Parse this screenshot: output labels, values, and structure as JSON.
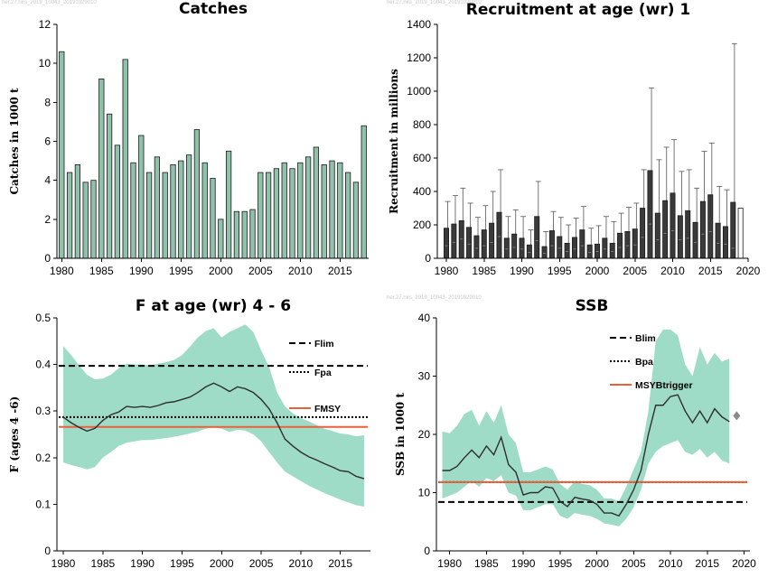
{
  "watermarks": {
    "catches": "her.27.nirs_2019_10043_20191029010",
    "recruitment": "her.27.nirs_2019_10043_20191029010",
    "f": "her.27.nirs_2019_10043_20191029010",
    "ssb": "her.27.nirs_2019_10043_20191029010"
  },
  "colors": {
    "catch_bar": "#8fc1ab",
    "rec_bar": "#3a3a3a",
    "band": "#9fdcc8",
    "ref_red": "#e8613a"
  },
  "chart_data": [
    {
      "id": "catches",
      "type": "bar",
      "title": "Catches",
      "xlabel": "",
      "ylabel": "Catches in 1000 t",
      "xlim": [
        1979.4,
        2018.6
      ],
      "ylim": [
        0,
        12
      ],
      "yticks": [
        0,
        2,
        4,
        6,
        8,
        10,
        12
      ],
      "xticks": [
        1980,
        1985,
        1990,
        1995,
        2000,
        2005,
        2010,
        2015
      ],
      "years": [
        1980,
        1981,
        1982,
        1983,
        1984,
        1985,
        1986,
        1987,
        1988,
        1989,
        1990,
        1991,
        1992,
        1993,
        1994,
        1995,
        1996,
        1997,
        1998,
        1999,
        2000,
        2001,
        2002,
        2003,
        2004,
        2005,
        2006,
        2007,
        2008,
        2009,
        2010,
        2011,
        2012,
        2013,
        2014,
        2015,
        2016,
        2017,
        2018
      ],
      "values": [
        10.6,
        4.4,
        4.8,
        3.9,
        4.0,
        9.2,
        7.4,
        5.8,
        10.2,
        4.9,
        6.3,
        4.4,
        5.2,
        4.4,
        4.8,
        5.0,
        5.3,
        6.6,
        4.9,
        4.1,
        2.0,
        5.5,
        2.4,
        2.4,
        2.5,
        4.4,
        4.4,
        4.6,
        4.9,
        4.6,
        4.9,
        5.2,
        5.7,
        4.8,
        5.0,
        4.9,
        4.4,
        3.9,
        6.8
      ]
    },
    {
      "id": "recruitment",
      "type": "bar",
      "title": "Recruitment at age (wr) 1",
      "xlabel": "",
      "ylabel": "Recruitment in millions",
      "xlim": [
        1978.8,
        2020
      ],
      "ylim": [
        0,
        1400
      ],
      "yticks": [
        0,
        200,
        400,
        600,
        800,
        1000,
        1200,
        1400
      ],
      "xticks": [
        1980,
        1985,
        1990,
        1995,
        2000,
        2005,
        2010,
        2015,
        2020
      ],
      "years": [
        1980,
        1981,
        1982,
        1983,
        1984,
        1985,
        1986,
        1987,
        1988,
        1989,
        1990,
        1991,
        1992,
        1993,
        1994,
        1995,
        1996,
        1997,
        1998,
        1999,
        2000,
        2001,
        2002,
        2003,
        2004,
        2005,
        2006,
        2007,
        2008,
        2009,
        2010,
        2011,
        2012,
        2013,
        2014,
        2015,
        2016,
        2017,
        2018,
        2019
      ],
      "values": [
        180,
        205,
        225,
        185,
        135,
        170,
        210,
        275,
        120,
        145,
        120,
        80,
        250,
        70,
        165,
        130,
        90,
        125,
        170,
        80,
        85,
        120,
        90,
        150,
        160,
        175,
        300,
        525,
        270,
        345,
        390,
        255,
        285,
        215,
        340,
        380,
        210,
        190,
        335,
        300
      ],
      "upper": [
        340,
        375,
        420,
        330,
        245,
        315,
        400,
        530,
        250,
        290,
        250,
        170,
        460,
        160,
        280,
        245,
        200,
        240,
        310,
        180,
        195,
        250,
        220,
        270,
        305,
        330,
        530,
        1020,
        590,
        665,
        710,
        520,
        530,
        420,
        640,
        690,
        430,
        410,
        1285,
        300
      ],
      "lower": [
        75,
        95,
        115,
        85,
        60,
        75,
        95,
        130,
        55,
        65,
        55,
        35,
        105,
        30,
        75,
        60,
        40,
        55,
        75,
        35,
        40,
        55,
        40,
        65,
        75,
        80,
        125,
        205,
        110,
        150,
        165,
        110,
        120,
        95,
        145,
        160,
        90,
        85,
        60,
        300
      ],
      "last_year_open_bar": 2019
    },
    {
      "id": "fishing_mortality",
      "type": "line",
      "title": "F at age (wr) 4 - 6",
      "xlabel": "",
      "ylabel": "F (ages 4 -6)",
      "xlim": [
        1979.2,
        2018.8
      ],
      "ylim": [
        0,
        0.5
      ],
      "yticks": [
        0,
        0.1,
        0.2,
        0.3,
        0.4,
        0.5
      ],
      "xticks": [
        1980,
        1985,
        1990,
        1995,
        2000,
        2005,
        2010,
        2015
      ],
      "x": [
        1980,
        1981,
        1982,
        1983,
        1984,
        1985,
        1986,
        1987,
        1988,
        1989,
        1990,
        1991,
        1992,
        1993,
        1994,
        1995,
        1996,
        1997,
        1998,
        1999,
        2000,
        2001,
        2002,
        2003,
        2004,
        2005,
        2006,
        2007,
        2008,
        2009,
        2010,
        2011,
        2012,
        2013,
        2014,
        2015,
        2016,
        2017,
        2018
      ],
      "y": [
        0.287,
        0.275,
        0.265,
        0.257,
        0.263,
        0.28,
        0.292,
        0.298,
        0.31,
        0.308,
        0.31,
        0.308,
        0.312,
        0.318,
        0.32,
        0.325,
        0.33,
        0.34,
        0.352,
        0.36,
        0.352,
        0.342,
        0.352,
        0.348,
        0.34,
        0.325,
        0.305,
        0.275,
        0.24,
        0.225,
        0.212,
        0.202,
        0.195,
        0.187,
        0.18,
        0.172,
        0.17,
        0.16,
        0.155
      ],
      "upper": [
        0.44,
        0.42,
        0.398,
        0.378,
        0.368,
        0.37,
        0.378,
        0.392,
        0.402,
        0.4,
        0.4,
        0.398,
        0.402,
        0.405,
        0.41,
        0.42,
        0.438,
        0.458,
        0.472,
        0.478,
        0.458,
        0.47,
        0.478,
        0.486,
        0.47,
        0.43,
        0.395,
        0.34,
        0.31,
        0.295,
        0.285,
        0.278,
        0.27,
        0.262,
        0.257,
        0.252,
        0.25,
        0.246,
        0.248
      ],
      "lower": [
        0.19,
        0.184,
        0.18,
        0.175,
        0.18,
        0.2,
        0.212,
        0.225,
        0.232,
        0.235,
        0.238,
        0.238,
        0.24,
        0.242,
        0.245,
        0.248,
        0.252,
        0.256,
        0.262,
        0.265,
        0.262,
        0.255,
        0.26,
        0.258,
        0.25,
        0.235,
        0.212,
        0.19,
        0.17,
        0.16,
        0.15,
        0.14,
        0.132,
        0.124,
        0.117,
        0.11,
        0.104,
        0.098,
        0.095
      ],
      "refs": [
        {
          "name": "Flim",
          "value": 0.397,
          "style": "dashed",
          "color": "#000000"
        },
        {
          "name": "Fpa",
          "value": 0.287,
          "style": "dotted",
          "color": "#000000"
        },
        {
          "name": "FMSY",
          "value": 0.266,
          "style": "solid",
          "color": "#e8613a"
        }
      ],
      "legend": "top-right"
    },
    {
      "id": "ssb",
      "type": "line",
      "title": "SSB",
      "xlabel": "",
      "ylabel": "SSB in 1000 t",
      "xlim": [
        1978.2,
        2020.8
      ],
      "ylim": [
        0,
        40
      ],
      "yticks": [
        0,
        10,
        20,
        30,
        40
      ],
      "xticks": [
        1980,
        1985,
        1990,
        1995,
        2000,
        2005,
        2010,
        2015,
        2020
      ],
      "x": [
        1979,
        1980,
        1981,
        1982,
        1983,
        1984,
        1985,
        1986,
        1987,
        1988,
        1989,
        1990,
        1991,
        1992,
        1993,
        1994,
        1995,
        1996,
        1997,
        1998,
        1999,
        2000,
        2001,
        2002,
        2003,
        2004,
        2005,
        2006,
        2007,
        2008,
        2009,
        2010,
        2011,
        2012,
        2013,
        2014,
        2015,
        2016,
        2017,
        2018
      ],
      "y": [
        13.8,
        13.8,
        14.5,
        16.0,
        17.3,
        16.0,
        18.0,
        16.5,
        19.5,
        14.8,
        13.5,
        9.6,
        10.0,
        10.0,
        11.0,
        10.8,
        8.5,
        7.6,
        9.2,
        8.9,
        8.7,
        8.0,
        6.5,
        6.5,
        6.0,
        8.0,
        10.5,
        13.8,
        20.0,
        25.0,
        25.0,
        26.5,
        26.8,
        24.0,
        22.0,
        24.0,
        22.0,
        24.4,
        23.0,
        22.2
      ],
      "upper": [
        20.5,
        20.2,
        21.5,
        23.5,
        24.2,
        21.5,
        24.0,
        22.0,
        25.0,
        20.0,
        18.5,
        13.5,
        13.5,
        14.0,
        14.5,
        14.0,
        11.5,
        10.5,
        12.0,
        11.5,
        11.3,
        10.5,
        9.0,
        9.0,
        8.5,
        11.0,
        14.0,
        17.0,
        24.0,
        36.0,
        38.0,
        38.0,
        37.0,
        32.0,
        30.0,
        35.0,
        32.0,
        34.0,
        32.5,
        33.0
      ],
      "lower": [
        9.0,
        9.5,
        10.0,
        11.0,
        12.0,
        11.0,
        12.5,
        12.0,
        13.0,
        10.0,
        9.5,
        7.0,
        7.0,
        7.5,
        8.0,
        8.0,
        6.0,
        5.5,
        6.5,
        6.2,
        6.0,
        5.5,
        4.7,
        4.5,
        4.2,
        5.5,
        7.5,
        10.5,
        15.0,
        17.0,
        18.0,
        18.5,
        19.0,
        17.0,
        16.5,
        17.5,
        16.0,
        17.0,
        15.5,
        15.0
      ],
      "marker": {
        "x": 2019,
        "y": 23.2
      },
      "refs": [
        {
          "name": "Blim",
          "value": 8.4,
          "style": "dashed",
          "color": "#000000"
        },
        {
          "name": "Bpa",
          "value": 11.8,
          "style": "dotted",
          "color": "#000000"
        },
        {
          "name": "MSYBtrigger",
          "value": 11.8,
          "style": "solid",
          "color": "#e8613a"
        }
      ],
      "legend": "top-center"
    }
  ]
}
